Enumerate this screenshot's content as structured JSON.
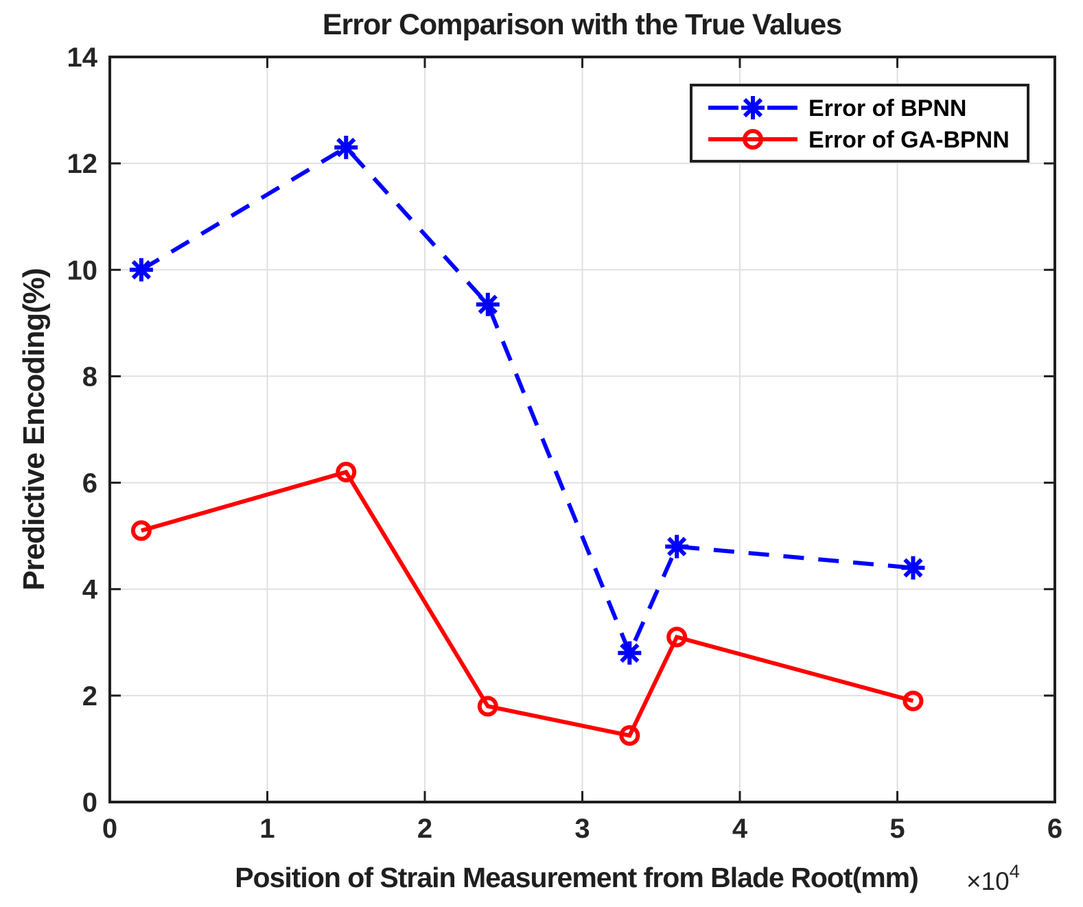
{
  "chart_data": {
    "type": "line",
    "title": "Error Comparison with the True Values",
    "xlabel": "Position of Strain Measurement from Blade Root(mm)",
    "ylabel": "Predictive Encoding(%)",
    "x_axis_multiplier": {
      "base": "×10",
      "exponent": "4"
    },
    "xlim": [
      0,
      6
    ],
    "ylim": [
      0,
      14
    ],
    "x_ticks": [
      0,
      1,
      2,
      3,
      4,
      5,
      6
    ],
    "y_ticks": [
      0,
      2,
      4,
      6,
      8,
      10,
      12,
      14
    ],
    "grid": true,
    "legend_position": "top-right",
    "x": [
      0.2,
      1.5,
      2.4,
      3.3,
      3.6,
      5.1
    ],
    "series": [
      {
        "name": "Error of BPNN",
        "color": "#0000ff",
        "line_style": "dashed",
        "marker": "asterisk",
        "values": [
          10.0,
          12.3,
          9.35,
          2.8,
          4.8,
          4.4
        ]
      },
      {
        "name": "Error of GA-BPNN",
        "color": "#ff0000",
        "line_style": "solid",
        "marker": "circle",
        "values": [
          5.1,
          6.2,
          1.8,
          1.25,
          3.1,
          1.9
        ]
      }
    ]
  },
  "styles": {
    "background": "#ffffff",
    "axis_color": "#1f1f1f",
    "grid_color": "#e0e0e0",
    "text_color": "#262626",
    "blue_series": "#0000ff",
    "red_series": "#ff0000"
  }
}
